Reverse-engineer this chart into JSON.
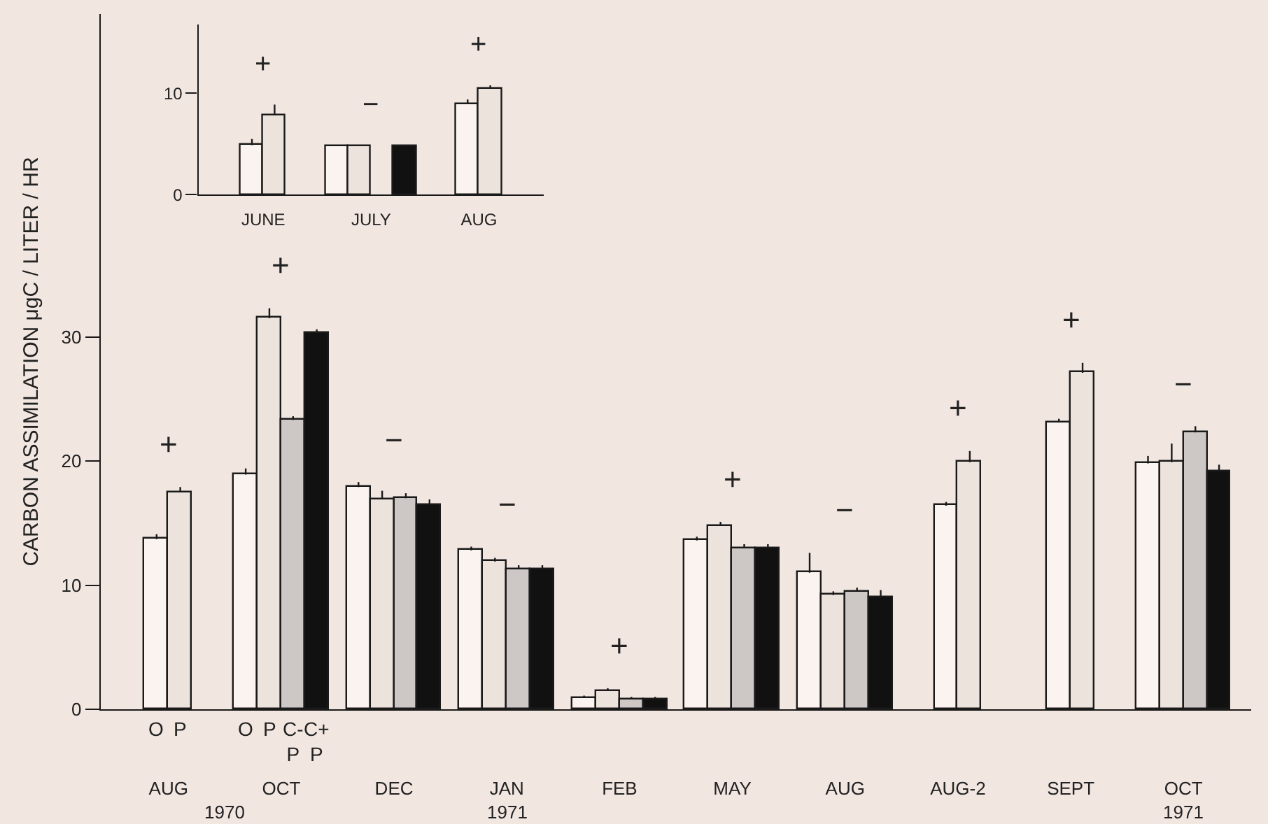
{
  "chart_data": [
    {
      "type": "bar",
      "ylabel": "CARBON ASSIMILATION μgC / LITER / HR",
      "categories": [
        "AUG",
        "OCT",
        "DEC",
        "JAN",
        "FEB",
        "MAY",
        "AUG",
        "AUG-2",
        "SEPT",
        "OCT"
      ],
      "series": [
        {
          "color": "#faf3ef",
          "values": [
            13.7,
            18.9,
            17.9,
            12.8,
            0.9,
            13.6,
            11.0,
            16.4,
            23.1,
            19.8
          ],
          "errors": [
            [
              13.7,
              14.1
            ],
            [
              18.9,
              19.4
            ],
            [
              17.9,
              18.3
            ],
            [
              12.8,
              13.1
            ],
            [
              0.9,
              1.1
            ],
            [
              13.6,
              13.9
            ],
            [
              11.0,
              12.6
            ],
            [
              16.4,
              16.7
            ],
            [
              23.1,
              23.4
            ],
            [
              19.8,
              20.4
            ]
          ]
        },
        {
          "color": "#ede3dd",
          "values": [
            17.5,
            31.5,
            16.9,
            11.9,
            1.5,
            14.8,
            9.2,
            19.9,
            27.1,
            19.9
          ],
          "errors": [
            [
              17.5,
              17.9
            ],
            [
              31.5,
              32.3
            ],
            [
              16.9,
              17.6
            ],
            [
              11.9,
              12.2
            ],
            [
              1.5,
              1.7
            ],
            [
              14.8,
              15.1
            ],
            [
              9.2,
              9.5
            ],
            [
              19.9,
              20.8
            ],
            [
              27.1,
              27.9
            ],
            [
              19.9,
              21.4
            ]
          ]
        },
        {
          "color": "#cdc8c5",
          "values": [
            null,
            23.3,
            17.0,
            11.3,
            0.8,
            13.0,
            9.5,
            null,
            null,
            22.3
          ],
          "errors": [
            null,
            [
              23.3,
              23.6
            ],
            [
              17.0,
              17.4
            ],
            [
              11.3,
              11.6
            ],
            [
              0.8,
              1.0
            ],
            [
              13.0,
              13.3
            ],
            [
              9.5,
              9.8
            ],
            null,
            null,
            [
              22.3,
              22.8
            ]
          ]
        },
        {
          "color": "#111111",
          "values": [
            null,
            30.3,
            16.5,
            11.3,
            0.8,
            13.0,
            9.0,
            null,
            null,
            19.2
          ],
          "errors": [
            null,
            [
              30.3,
              30.6
            ],
            [
              16.5,
              16.9
            ],
            [
              11.3,
              11.6
            ],
            [
              0.8,
              1.0
            ],
            [
              13.0,
              13.3
            ],
            [
              9.0,
              9.6
            ],
            null,
            null,
            [
              19.2,
              19.7
            ]
          ]
        }
      ],
      "ylim": [
        0,
        56
      ],
      "yticks": [
        0,
        10,
        20,
        30
      ],
      "grid": false,
      "legend": false,
      "annotations": [
        "+",
        "+",
        "−",
        "−",
        "+",
        "+",
        "−",
        "+",
        "+",
        "−",
        "O",
        "P",
        "O",
        "P",
        "C-\nP",
        "C+\nP",
        "1970",
        "1971",
        "1971"
      ]
    },
    {
      "type": "bar",
      "categories": [
        "JUNE",
        "JULY",
        "AUG"
      ],
      "series": [
        {
          "color": "#faf3ef",
          "values": [
            4.9,
            4.8,
            9.0
          ],
          "errors": [
            [
              4.9,
              5.5
            ],
            null,
            [
              9.0,
              9.4
            ]
          ]
        },
        {
          "color": "#ede3dd",
          "values": [
            7.9,
            4.8,
            10.5
          ],
          "errors": [
            [
              7.9,
              8.9
            ],
            null,
            [
              10.5,
              10.8
            ]
          ]
        },
        {
          "color": "#cdc8c5",
          "values": [
            null,
            null,
            null
          ]
        },
        {
          "color": "#111111",
          "values": [
            null,
            4.8,
            null
          ]
        }
      ],
      "ylim": [
        0,
        16.8
      ],
      "yticks": [
        0,
        10
      ],
      "grid": false,
      "legend": false,
      "annotations": [
        "+",
        "−",
        "+"
      ]
    }
  ]
}
